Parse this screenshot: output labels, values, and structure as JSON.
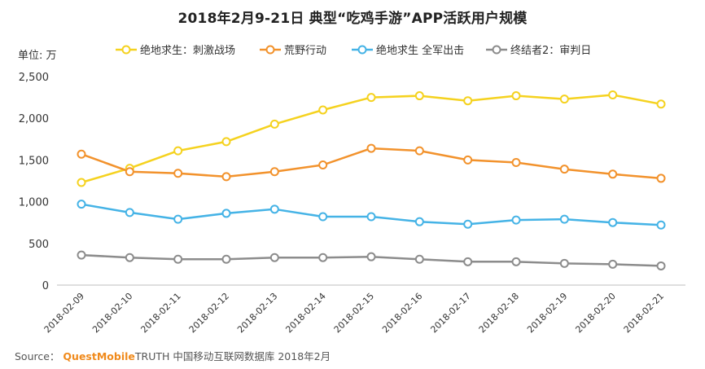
{
  "chart_data": {
    "type": "line",
    "title": "2018年2月9-21日 典型“吃鸡手游”APP活跃用户规模",
    "ylabel": "单位: 万",
    "xlabel": "",
    "ylim": [
      0,
      2500
    ],
    "yticks": [
      "0",
      "500",
      "1,000",
      "1,500",
      "2,000",
      "2,500"
    ],
    "ytick_values": [
      0,
      500,
      1000,
      1500,
      2000,
      2500
    ],
    "grid": false,
    "legend_position": "top",
    "categories": [
      "2018-02-09",
      "2018-02-10",
      "2018-02-11",
      "2018-02-12",
      "2018-02-13",
      "2018-02-14",
      "2018-02-15",
      "2018-02-16",
      "2018-02-17",
      "2018-02-18",
      "2018-02-19",
      "2018-02-20",
      "2018-02-21"
    ],
    "series": [
      {
        "name": "绝地求生：刺激战场",
        "color": "#f5d21f",
        "values": [
          1230,
          1400,
          1610,
          1720,
          1930,
          2100,
          2250,
          2270,
          2210,
          2270,
          2230,
          2280,
          2170
        ]
      },
      {
        "name": "荒野行动",
        "color": "#f2922c",
        "values": [
          1570,
          1360,
          1340,
          1300,
          1360,
          1440,
          1640,
          1610,
          1500,
          1470,
          1390,
          1330,
          1280
        ]
      },
      {
        "name": "绝地求生 全军出击",
        "color": "#45b3e6",
        "values": [
          970,
          870,
          790,
          860,
          910,
          820,
          820,
          760,
          730,
          780,
          790,
          750,
          720
        ]
      },
      {
        "name": "终结者2：审判日",
        "color": "#8c8c8c",
        "values": [
          360,
          330,
          310,
          310,
          330,
          330,
          340,
          310,
          280,
          280,
          260,
          250,
          230
        ]
      }
    ]
  },
  "source": {
    "prefix": "Source：",
    "brand": "QuestMobile",
    "brand_suffix": "TRUTH",
    "rest": "中国移动互联网数据库 2018年2月"
  }
}
